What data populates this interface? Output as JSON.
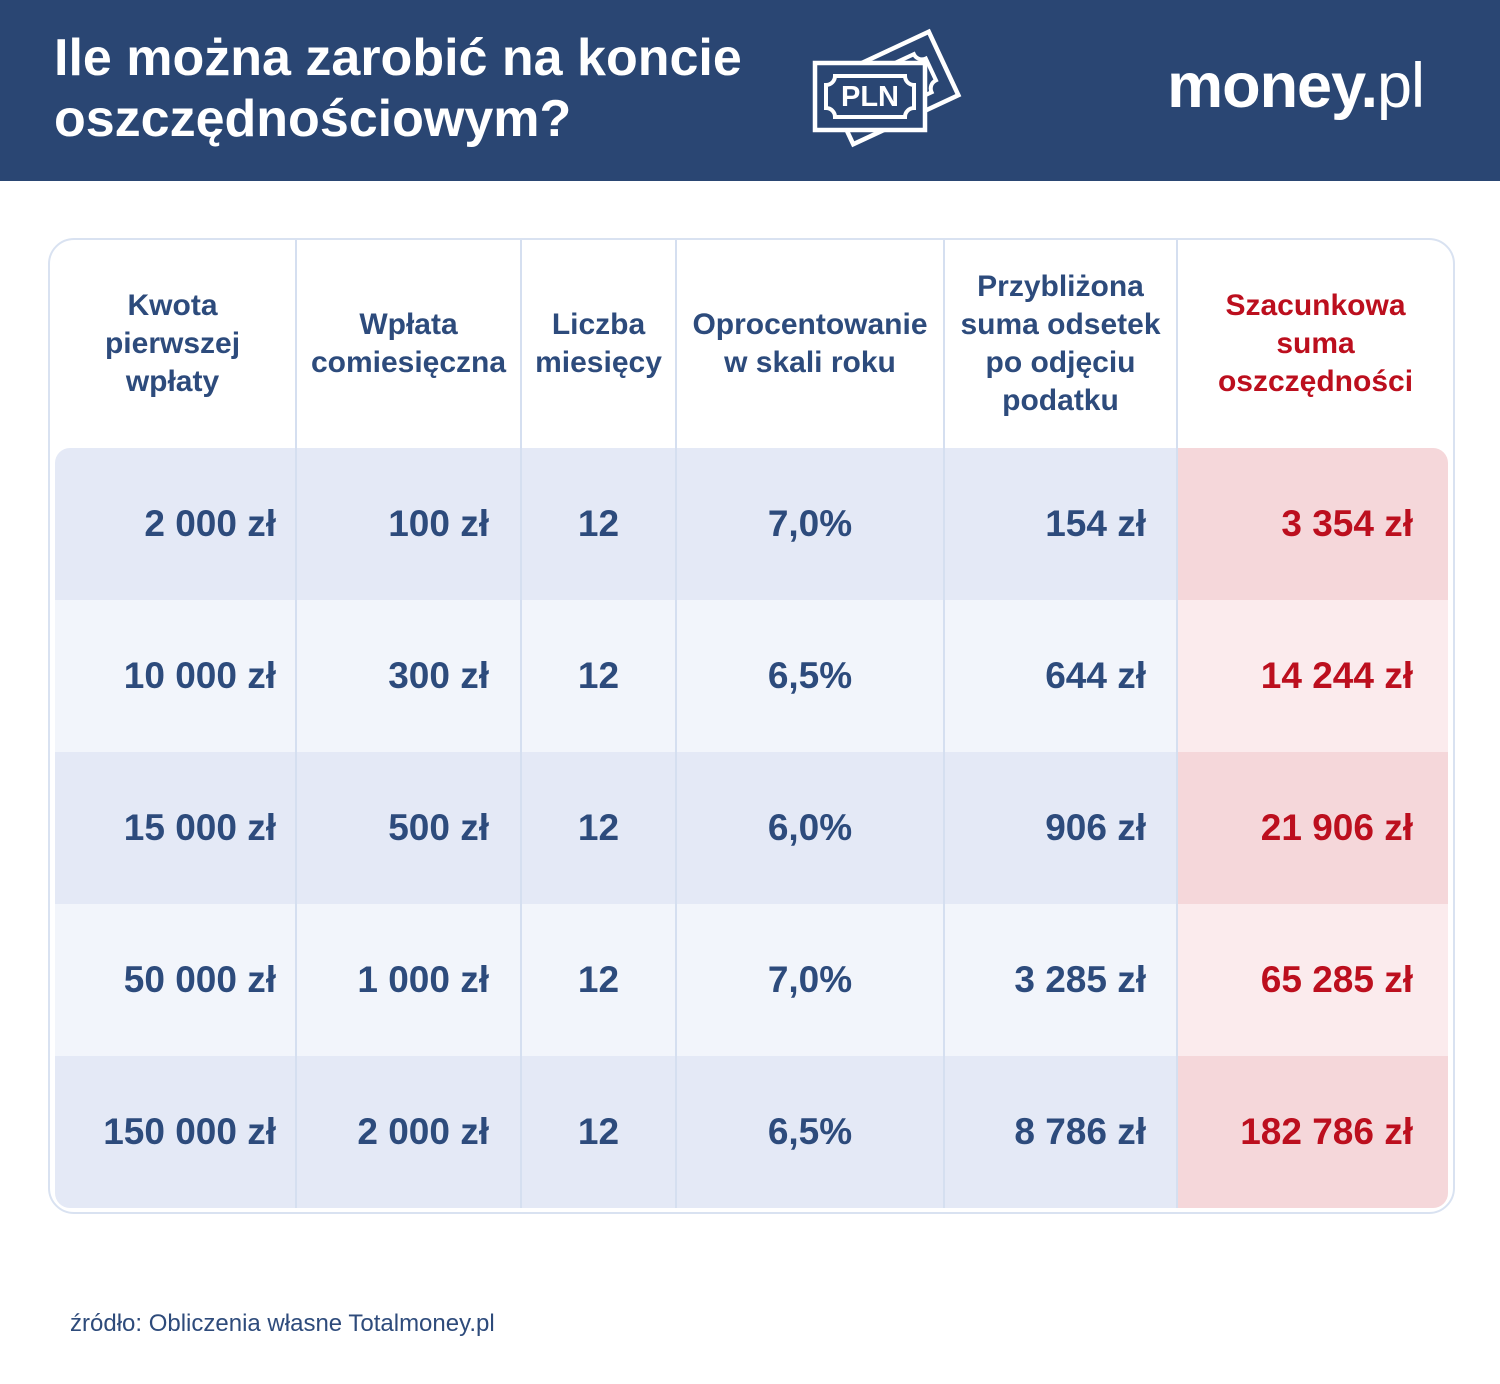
{
  "header": {
    "title_line1": "Ile można zarobić na koncie",
    "title_line2": "oszczędnościowym?",
    "logo_bold": "money.",
    "logo_light": "pl",
    "icon_label": "PLN"
  },
  "chart_data": {
    "type": "table",
    "title": "Ile można zarobić na koncie oszczędnościowym?",
    "columns": [
      "Kwota\npierwszej\nwpłaty",
      "Wpłata\ncomiesięczna",
      "Liczba\nmiesięcy",
      "Oprocentowanie\nw skali roku",
      "Przybliżona\nsuma odsetek\npo odjęciu\npodatku",
      "Szacunkowa\nsuma\noszczędności"
    ],
    "rows": [
      [
        "2 000 zł",
        "100 zł",
        "12",
        "7,0%",
        "154 zł",
        "3 354 zł"
      ],
      [
        "10 000 zł",
        "300 zł",
        "12",
        "6,5%",
        "644 zł",
        "14 244 zł"
      ],
      [
        "15 000 zł",
        "500 zł",
        "12",
        "6,0%",
        "906 zł",
        "21 906 zł"
      ],
      [
        "50 000 zł",
        "1 000 zł",
        "12",
        "7,0%",
        "3 285 zł",
        "65 285 zł"
      ],
      [
        "150 000 zł",
        "2 000 zł",
        "12",
        "6,5%",
        "8 786 zł",
        "182 786 zł"
      ]
    ],
    "highlight_column_index": 5,
    "colors": {
      "band": "#2a4673",
      "text_navy": "#2d4b7c",
      "text_red": "#bc0f1e",
      "row_odd": "#e4e9f6",
      "row_even": "#f2f5fb",
      "row_odd_highlight": "#f5d7da",
      "row_even_highlight": "#fbebed",
      "table_border": "#d9e2f1"
    }
  },
  "footer": {
    "source": "źródło: Obliczenia własne Totalmoney.pl"
  }
}
